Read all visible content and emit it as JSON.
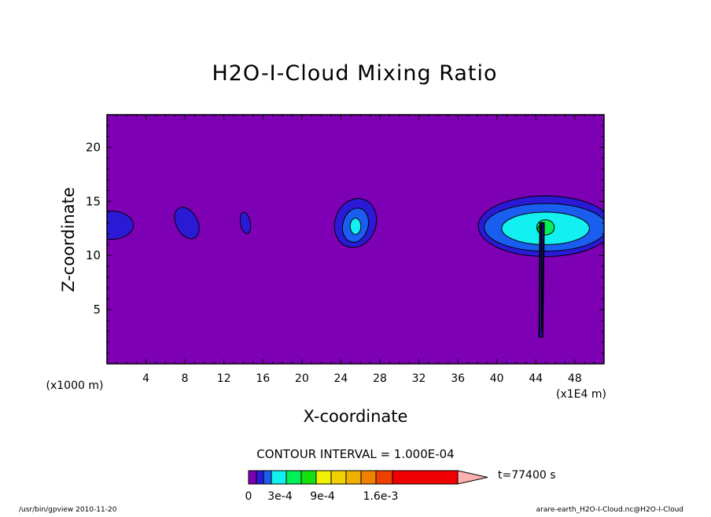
{
  "chart_data": {
    "type": "contour",
    "title": "H2O-I-Cloud Mixing Ratio",
    "xlabel": "X-coordinate",
    "ylabel": "Z-coordinate",
    "x_unit_label": "(x1E4 m)",
    "y_unit_label": "(x1000 m)",
    "xlim": [
      0,
      51
    ],
    "ylim": [
      0,
      23
    ],
    "x_ticks": [
      4,
      8,
      12,
      16,
      20,
      24,
      28,
      32,
      36,
      40,
      44,
      48
    ],
    "y_ticks": [
      5,
      10,
      15,
      20
    ],
    "contour_interval_text": "CONTOUR INTERVAL = 1.000E-04",
    "time_label": "t=77400 s",
    "colorbar": {
      "colors": [
        "#7d00b4",
        "#2a1ad6",
        "#1a5ef0",
        "#12f0f0",
        "#00f058",
        "#14e010",
        "#f0f000",
        "#f0d000",
        "#f0b000",
        "#f08000",
        "#f04000",
        "#f00000",
        "#ff7070",
        "#ffb0b0"
      ],
      "labels": [
        "0",
        "3e-4",
        "9e-4",
        "1.6e-3"
      ]
    },
    "background_color": "#7d00b4",
    "features": [
      {
        "name": "left-edge-cloud",
        "x": 0.5,
        "z": 12.8,
        "max_level": 1
      },
      {
        "name": "cloud-near-x8",
        "x": 8.2,
        "z": 13.0,
        "max_level": 1
      },
      {
        "name": "cloud-near-x14",
        "x": 14.2,
        "z": 13.0,
        "max_level": 1
      },
      {
        "name": "cloud-near-x25",
        "x": 25.5,
        "z": 12.8,
        "max_level": 3
      },
      {
        "name": "anvil-cloud-x45",
        "x": 45.0,
        "z": 12.5,
        "max_level": 5
      }
    ]
  },
  "footer": {
    "left": "/usr/bin/gpview  2010-11-20",
    "right": "arare-earth_H2O-I-Cloud.nc@H2O-I-Cloud"
  }
}
